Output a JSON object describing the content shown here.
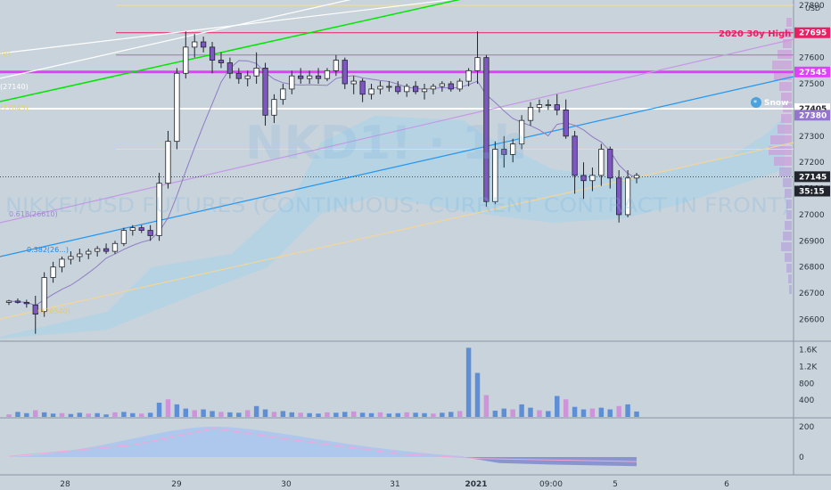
{
  "axis": {
    "currency": "USD"
  },
  "price_ticks": [
    27800,
    27700,
    27600,
    27500,
    27400,
    27300,
    27200,
    27100,
    27000,
    26900,
    26800,
    26700,
    26600
  ],
  "volume_ticks": [
    "1.6K",
    "1.2K",
    "800",
    "400"
  ],
  "osc_ticks": [
    200,
    0
  ],
  "time_labels": [
    {
      "label": "28",
      "x": 73
    },
    {
      "label": "29",
      "x": 198
    },
    {
      "label": "30",
      "x": 321
    },
    {
      "label": "31",
      "x": 443
    },
    {
      "label": "2021",
      "x": 534,
      "bold": true
    },
    {
      "label": "09:00",
      "x": 618
    },
    {
      "label": "5",
      "x": 690
    },
    {
      "label": "6",
      "x": 815
    }
  ],
  "price_tags": [
    {
      "value": "27695",
      "bg": "#e91e63",
      "fg": "#ffffff"
    },
    {
      "value": "27545",
      "bg": "#e040fb",
      "fg": "#ffffff"
    },
    {
      "value": "27405",
      "bg": "#ffffff",
      "fg": "#20242c"
    },
    {
      "value": "27380",
      "bg": "#9575cd",
      "fg": "#ffffff"
    },
    {
      "value": "27145",
      "bg": "#20242c",
      "fg": "#ffffff"
    },
    {
      "value": "35:15",
      "bg": "#20242c",
      "fg": "#ffffff"
    }
  ],
  "annotations": {
    "high_label": "2020 30y High",
    "watermark": "NKD1! · 1h",
    "subtitle": "NIKKEI/USD FUTURES (CONTINUOUS: CURRENT CONTRACT IN FRONT)",
    "fib_618": "0.618(26610)",
    "fib_382": "0.382(26...)",
    "fib_low": "0(26540)",
    "left_a": "(0)",
    "left_b": "(27140)",
    "left_c": "(27045)",
    "snow_label": "Snow"
  },
  "colors": {
    "up": "#ffffff",
    "down": "#7e57c2",
    "volume_up": "#5e8fd6",
    "volume_down": "#ce93d8",
    "magenta": "#e040fb",
    "pink": "#e91e63",
    "green": "#00e600",
    "blue": "#2196f3",
    "orchid": "#ba68c8",
    "yellow": "#f5e663",
    "orange": "#ffcc80"
  },
  "chart_data": {
    "type": "candlestick",
    "symbol": "NIKKEI/USD FUTURES (CONTINUOUS: CURRENT CONTRACT IN FRONT)",
    "ylabel": "USD",
    "ylim": [
      26520,
      27820
    ],
    "x_labels": [
      "28",
      "29",
      "30",
      "31",
      "2021",
      "09:00",
      "5",
      "6"
    ],
    "last_price": 27145,
    "horizontal_levels": [
      27800,
      27695,
      27610,
      27545,
      27405,
      27250
    ],
    "ohlc": [
      [
        26665,
        26675,
        26655,
        26670
      ],
      [
        26670,
        26680,
        26660,
        26665
      ],
      [
        26665,
        26675,
        26645,
        26660
      ],
      [
        26655,
        26690,
        26545,
        26620
      ],
      [
        26630,
        26780,
        26610,
        26760
      ],
      [
        26760,
        26820,
        26740,
        26800
      ],
      [
        26800,
        26840,
        26780,
        26830
      ],
      [
        26830,
        26860,
        26810,
        26840
      ],
      [
        26840,
        26870,
        26820,
        26850
      ],
      [
        26850,
        26870,
        26830,
        26860
      ],
      [
        26860,
        26880,
        26840,
        26870
      ],
      [
        26870,
        26890,
        26850,
        26860
      ],
      [
        26860,
        26900,
        26850,
        26890
      ],
      [
        26890,
        26950,
        26880,
        26940
      ],
      [
        26940,
        26960,
        26920,
        26950
      ],
      [
        26950,
        26960,
        26930,
        26940
      ],
      [
        26940,
        26960,
        26900,
        26920
      ],
      [
        26920,
        27160,
        26900,
        27120
      ],
      [
        27120,
        27320,
        27100,
        27280
      ],
      [
        27280,
        27560,
        27250,
        27540
      ],
      [
        27540,
        27700,
        27520,
        27640
      ],
      [
        27640,
        27690,
        27600,
        27660
      ],
      [
        27660,
        27680,
        27620,
        27640
      ],
      [
        27640,
        27660,
        27540,
        27590
      ],
      [
        27590,
        27620,
        27560,
        27580
      ],
      [
        27580,
        27600,
        27520,
        27540
      ],
      [
        27540,
        27560,
        27500,
        27520
      ],
      [
        27520,
        27550,
        27490,
        27530
      ],
      [
        27530,
        27620,
        27500,
        27560
      ],
      [
        27560,
        27580,
        27340,
        27380
      ],
      [
        27380,
        27460,
        27350,
        27440
      ],
      [
        27440,
        27500,
        27420,
        27480
      ],
      [
        27480,
        27550,
        27460,
        27530
      ],
      [
        27530,
        27560,
        27500,
        27520
      ],
      [
        27520,
        27550,
        27500,
        27530
      ],
      [
        27530,
        27560,
        27500,
        27520
      ],
      [
        27520,
        27560,
        27510,
        27550
      ],
      [
        27550,
        27610,
        27530,
        27590
      ],
      [
        27590,
        27600,
        27480,
        27500
      ],
      [
        27500,
        27530,
        27460,
        27510
      ],
      [
        27510,
        27520,
        27430,
        27460
      ],
      [
        27460,
        27500,
        27440,
        27480
      ],
      [
        27480,
        27510,
        27460,
        27490
      ],
      [
        27490,
        27510,
        27470,
        27490
      ],
      [
        27490,
        27510,
        27460,
        27470
      ],
      [
        27470,
        27500,
        27450,
        27490
      ],
      [
        27490,
        27510,
        27460,
        27470
      ],
      [
        27470,
        27500,
        27440,
        27480
      ],
      [
        27480,
        27500,
        27460,
        27490
      ],
      [
        27490,
        27510,
        27470,
        27500
      ],
      [
        27500,
        27510,
        27470,
        27480
      ],
      [
        27480,
        27520,
        27470,
        27510
      ],
      [
        27510,
        27560,
        27490,
        27550
      ],
      [
        27550,
        27700,
        27500,
        27600
      ],
      [
        27600,
        27610,
        27030,
        27050
      ],
      [
        27050,
        27280,
        27040,
        27250
      ],
      [
        27250,
        27300,
        27180,
        27230
      ],
      [
        27230,
        27290,
        27200,
        27270
      ],
      [
        27270,
        27380,
        27250,
        27360
      ],
      [
        27360,
        27430,
        27340,
        27410
      ],
      [
        27410,
        27440,
        27390,
        27420
      ],
      [
        27420,
        27440,
        27400,
        27420
      ],
      [
        27420,
        27460,
        27380,
        27400
      ],
      [
        27400,
        27440,
        27290,
        27300
      ],
      [
        27300,
        27320,
        27080,
        27150
      ],
      [
        27150,
        27200,
        27060,
        27130
      ],
      [
        27130,
        27180,
        27090,
        27150
      ],
      [
        27150,
        27270,
        27110,
        27250
      ],
      [
        27250,
        27260,
        27100,
        27140
      ],
      [
        27140,
        27170,
        26970,
        27000
      ],
      [
        27000,
        27170,
        26990,
        27140
      ],
      [
        27140,
        27160,
        27120,
        27150
      ]
    ]
  }
}
